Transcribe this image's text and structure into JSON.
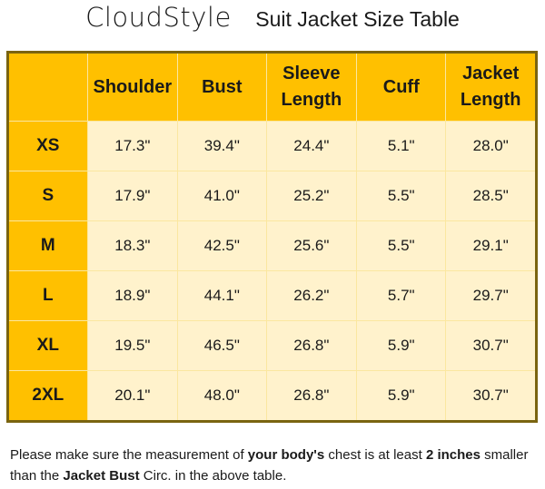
{
  "title": {
    "brand": "CloudStyle",
    "subtitle": "Suit Jacket Size Table"
  },
  "table": {
    "headers": [
      "",
      "Shoulder",
      "Bust",
      "Sleeve Length",
      "Cuff",
      "Jacket Length"
    ],
    "rows": [
      {
        "size": "XS",
        "values": [
          "17.3\"",
          "39.4\"",
          "24.4\"",
          "5.1\"",
          "28.0\""
        ]
      },
      {
        "size": "S",
        "values": [
          "17.9\"",
          "41.0\"",
          "25.2\"",
          "5.5\"",
          "28.5\""
        ]
      },
      {
        "size": "M",
        "values": [
          "18.3\"",
          "42.5\"",
          "25.6\"",
          "5.5\"",
          "29.1\""
        ]
      },
      {
        "size": "L",
        "values": [
          "18.9\"",
          "44.1\"",
          "26.2\"",
          "5.7\"",
          "29.7\""
        ]
      },
      {
        "size": "XL",
        "values": [
          "19.5\"",
          "46.5\"",
          "26.8\"",
          "5.9\"",
          "30.7\""
        ]
      },
      {
        "size": "2XL",
        "values": [
          "20.1\"",
          "48.0\"",
          "26.8\"",
          "5.9\"",
          "30.7\""
        ]
      }
    ]
  },
  "note": [
    {
      "text": "Please make sure the measurement of ",
      "bold": false
    },
    {
      "text": "your body's",
      "bold": true
    },
    {
      "text": " chest is at least ",
      "bold": false
    },
    {
      "text": "2 inches",
      "bold": true
    },
    {
      "text": " smaller than the ",
      "bold": false
    },
    {
      "text": "Jacket Bust",
      "bold": true
    },
    {
      "text": " Circ. in the above table.",
      "bold": false
    }
  ],
  "colors": {
    "header": "#FFC000",
    "cell": "#FFF2CC",
    "border": "#7a6410"
  }
}
